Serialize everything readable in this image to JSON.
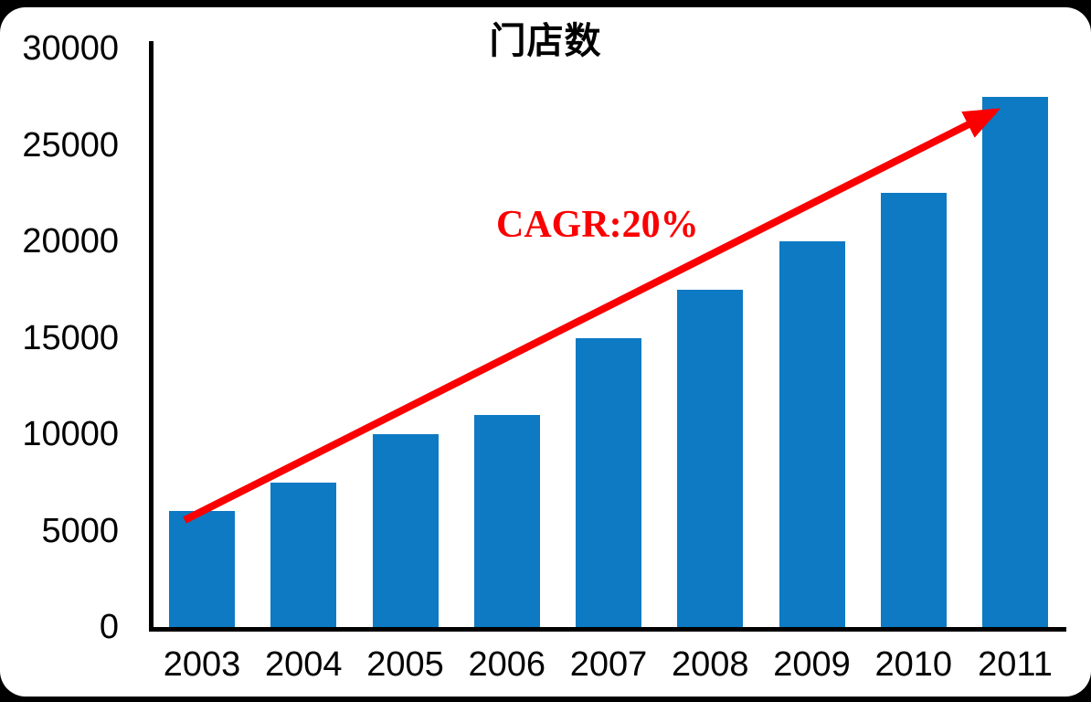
{
  "page": {
    "background_color": "#000000",
    "card_color": "#ffffff"
  },
  "chart_data": {
    "type": "bar",
    "title": "门店数",
    "categories": [
      "2003",
      "2004",
      "2005",
      "2006",
      "2007",
      "2008",
      "2009",
      "2010",
      "2011"
    ],
    "values": [
      6000,
      7500,
      10000,
      11000,
      15000,
      17500,
      20000,
      22500,
      27500
    ],
    "xlabel": "",
    "ylabel": "",
    "ylim": [
      0,
      30000
    ],
    "y_ticks": [
      0,
      5000,
      10000,
      15000,
      20000,
      25000,
      30000
    ],
    "grid": false,
    "legend_position": "none",
    "bar_color": "#0d7ac3",
    "axis_color": "#000000",
    "annotation": {
      "text": "CAGR:20%",
      "color": "#fb0000"
    },
    "trend_arrow": {
      "color": "#fb0000",
      "from_category": "2003",
      "from_value": 5500,
      "to_category": "2011",
      "to_value": 27300
    }
  }
}
